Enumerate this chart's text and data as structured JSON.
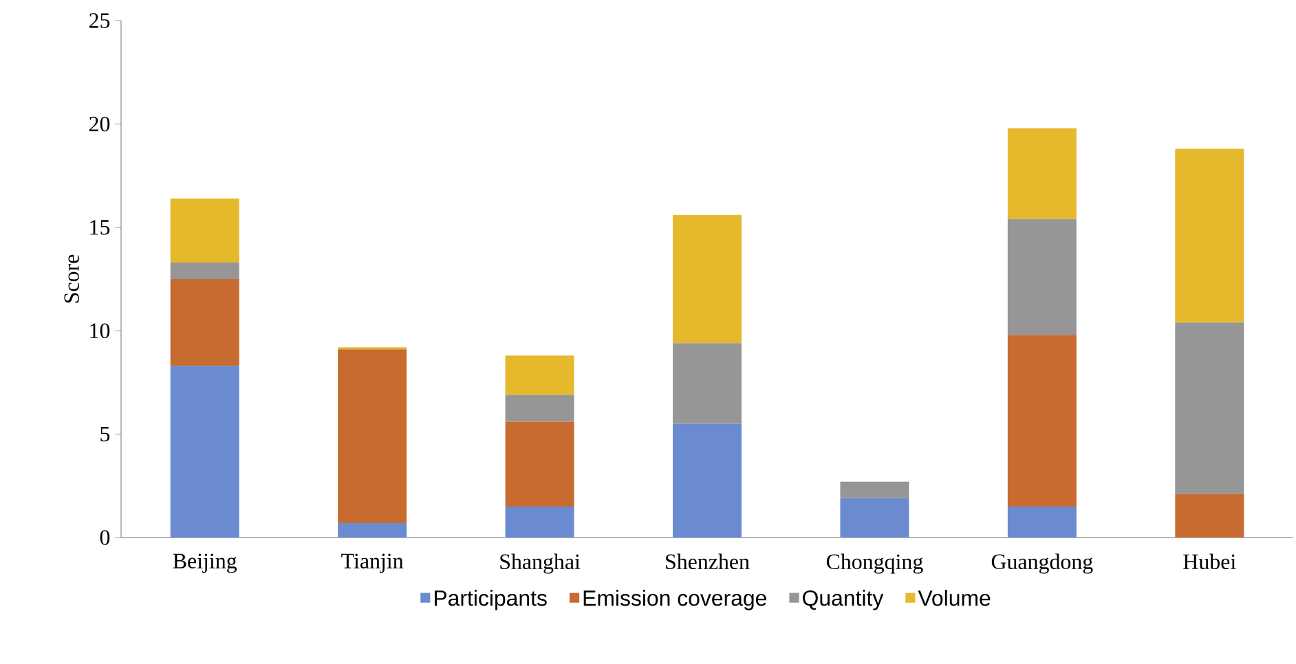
{
  "chart_data": {
    "type": "bar",
    "stacked": true,
    "ylabel": "Score",
    "categories": [
      "Beijing",
      "Tianjin",
      "Shanghai",
      "Shenzhen",
      "Chongqing",
      "Guangdong",
      "Hubei"
    ],
    "series": [
      {
        "name": "Participants",
        "color": "#6a8bcf",
        "values": [
          8.3,
          0.7,
          1.5,
          5.5,
          1.9,
          1.5,
          0
        ]
      },
      {
        "name": "Emission coverage",
        "color": "#c86b30",
        "values": [
          4.2,
          8.4,
          4.1,
          0,
          0,
          8.3,
          2.1
        ]
      },
      {
        "name": "Quantity",
        "color": "#969696",
        "values": [
          0.8,
          0,
          1.3,
          3.9,
          0.8,
          5.6,
          8.3
        ]
      },
      {
        "name": "Volume",
        "color": "#e6b92c",
        "values": [
          3.1,
          0.1,
          1.9,
          6.2,
          0,
          4.4,
          8.4
        ]
      }
    ],
    "ylim": [
      0,
      25
    ],
    "yticks": [
      0,
      5,
      10,
      15,
      20,
      25
    ],
    "grid": false,
    "legend": "bottom"
  }
}
